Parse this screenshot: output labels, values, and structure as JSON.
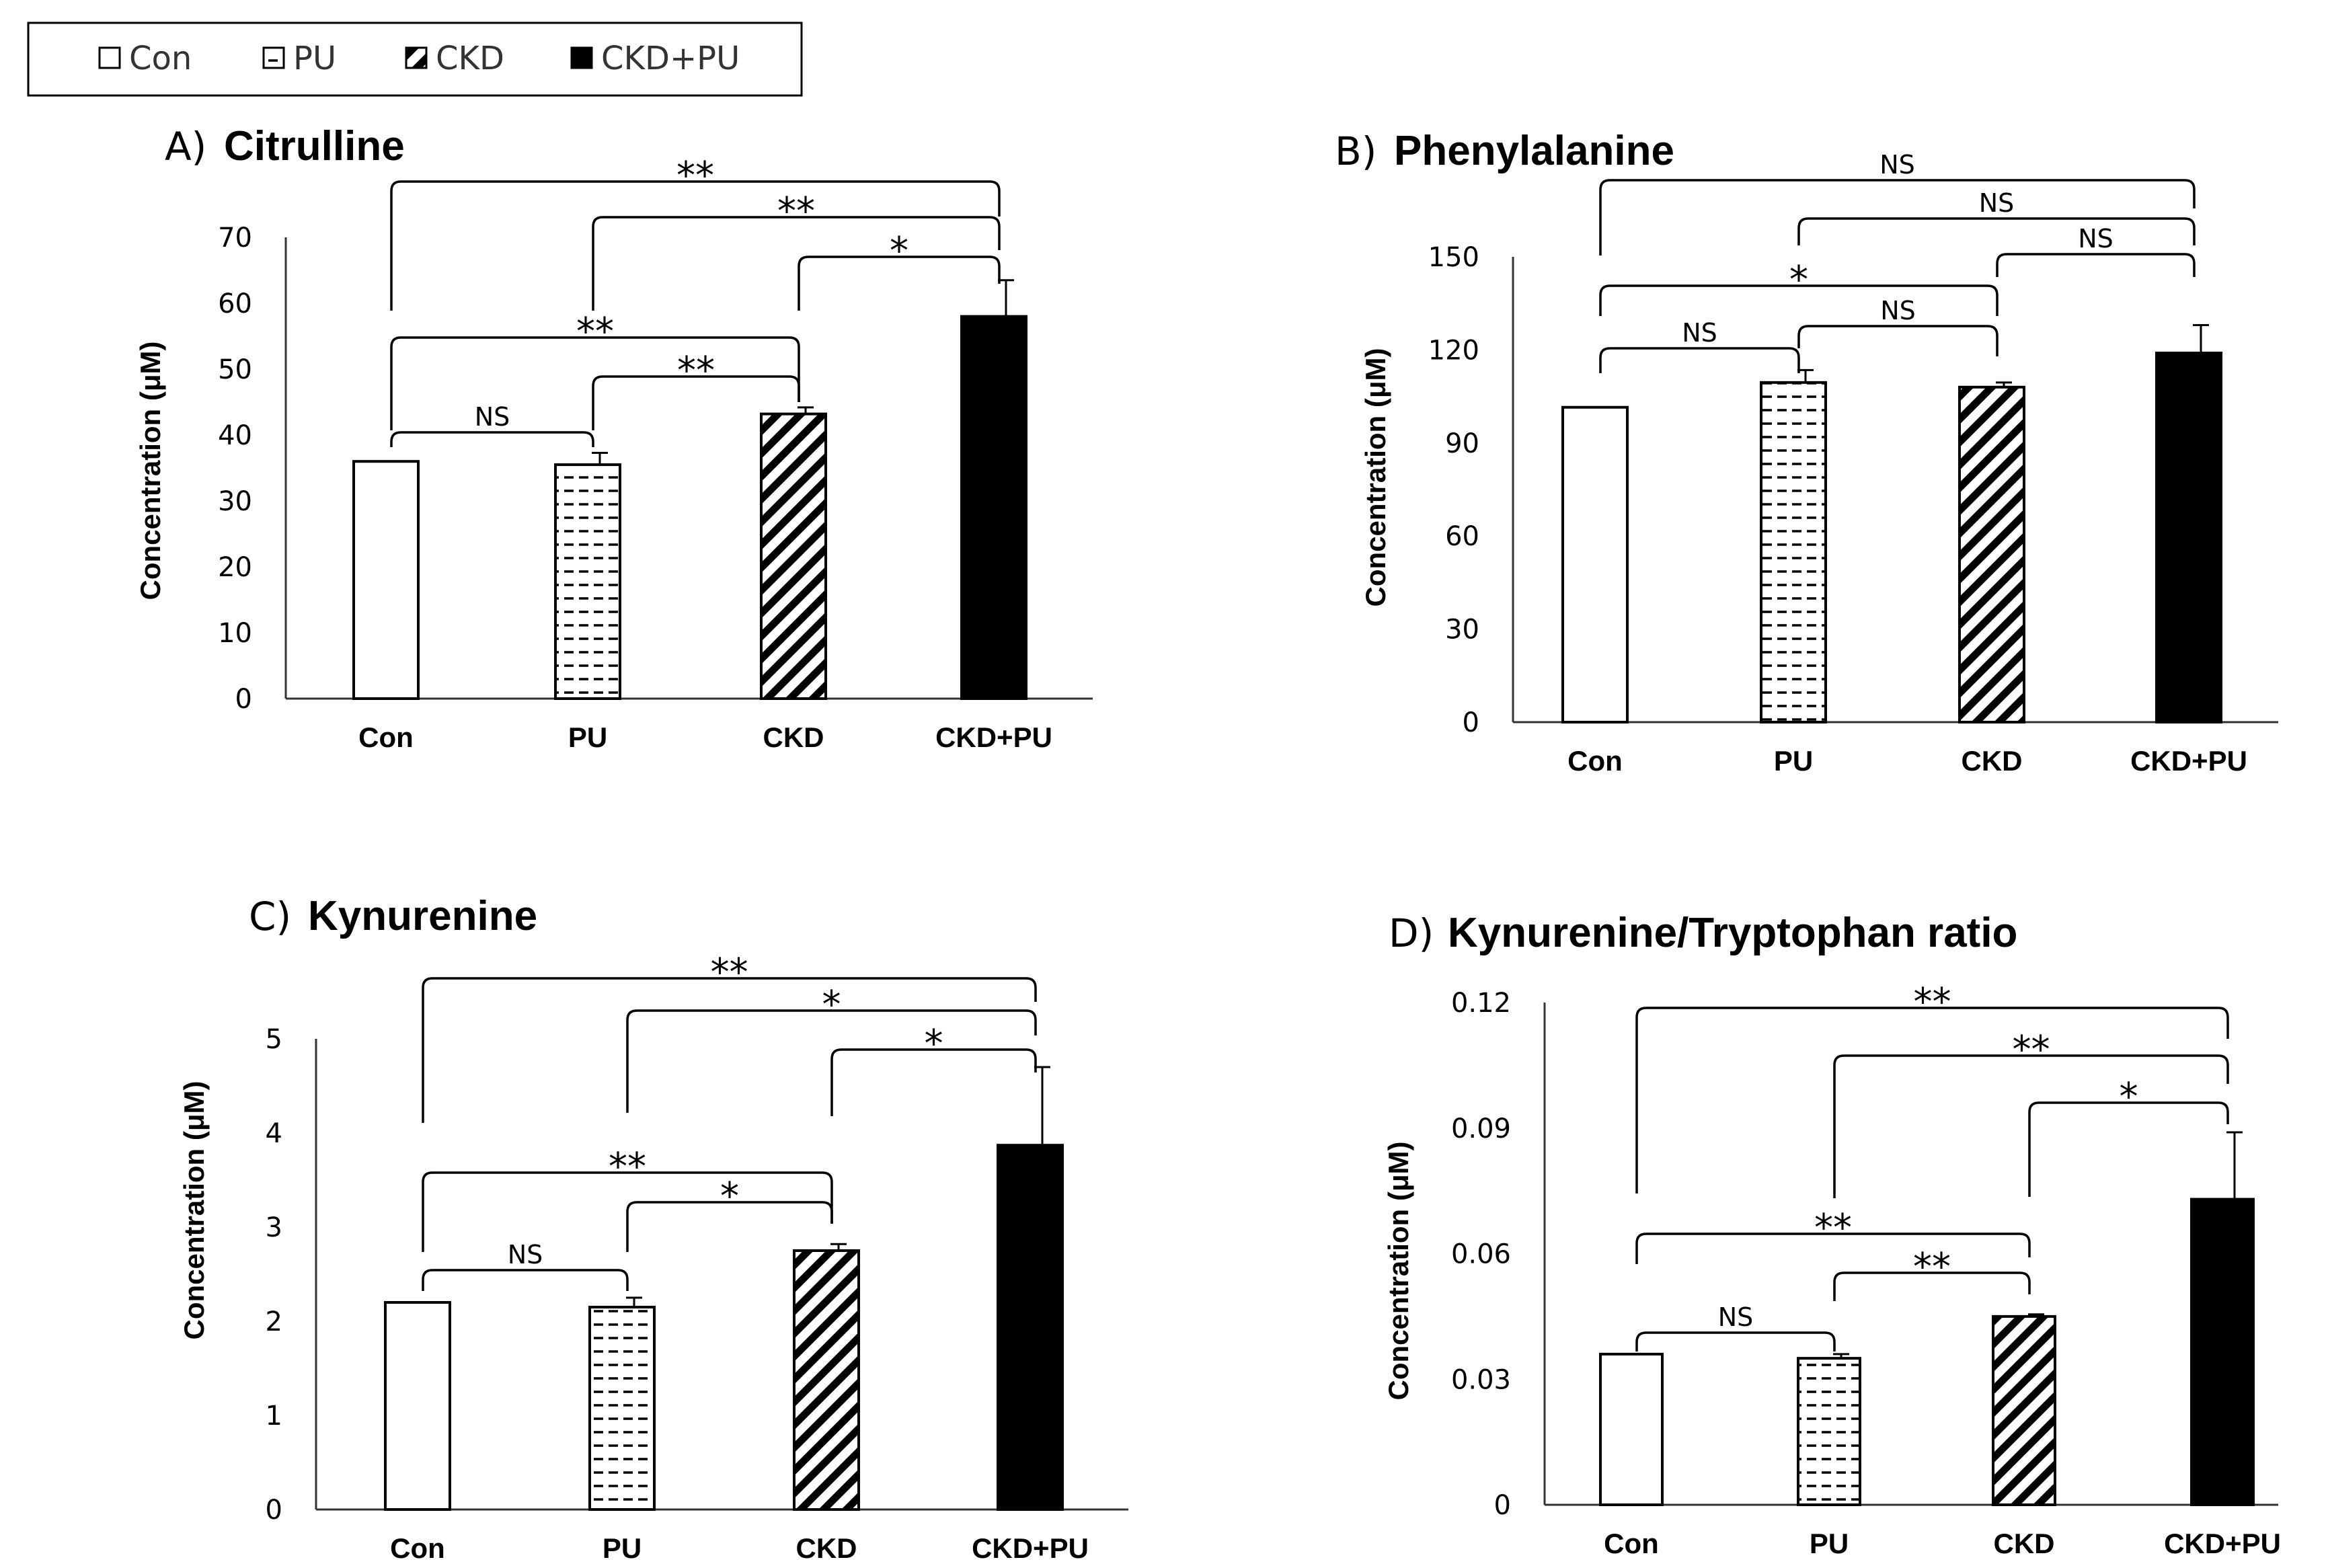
{
  "legend": [
    {
      "label": "Con",
      "pattern": "open"
    },
    {
      "label": "PU",
      "pattern": "dashed"
    },
    {
      "label": "CKD",
      "pattern": "hatched"
    },
    {
      "label": "CKD+PU",
      "pattern": "solid"
    }
  ],
  "colors": {
    "bar_outline": "#000000",
    "solid_fill": "#000000",
    "open_fill": "#ffffff"
  },
  "chart_data": [
    {
      "type": "bar",
      "letter": "A)",
      "title": "Citrulline",
      "ylabel": "Concentration (μM)",
      "categories": [
        "Con",
        "PU",
        "CKD",
        "CKD+PU"
      ],
      "values": [
        36,
        35.5,
        43.2,
        58
      ],
      "errors": [
        0,
        1.8,
        1.0,
        5.5
      ],
      "ylim": [
        0,
        70
      ],
      "yticks": [
        "0",
        "10",
        "20",
        "30",
        "40",
        "50",
        "60",
        "70"
      ],
      "tick_values": [
        0,
        10,
        20,
        30,
        40,
        50,
        60,
        70
      ],
      "comparisons": [
        {
          "from": 0,
          "to": 1,
          "label": "NS"
        },
        {
          "from": 1,
          "to": 2,
          "label": "**"
        },
        {
          "from": 0,
          "to": 2,
          "label": "**"
        },
        {
          "from": 2,
          "to": 3,
          "label": "*"
        },
        {
          "from": 1,
          "to": 3,
          "label": "**"
        },
        {
          "from": 0,
          "to": 3,
          "label": "**"
        }
      ]
    },
    {
      "type": "bar",
      "letter": "B)",
      "title": "Phenylalanine",
      "ylabel": "Concentration (μM)",
      "categories": [
        "Con",
        "PU",
        "CKD",
        "CKD+PU"
      ],
      "values": [
        101.5,
        109.5,
        108,
        119
      ],
      "errors": [
        0,
        4,
        1.5,
        9
      ],
      "ylim": [
        0,
        150
      ],
      "yticks": [
        "0",
        "30",
        "60",
        "90",
        "120",
        "150"
      ],
      "tick_values": [
        0,
        30,
        60,
        90,
        120,
        150
      ],
      "comparisons": [
        {
          "from": 0,
          "to": 1,
          "label": "NS"
        },
        {
          "from": 1,
          "to": 2,
          "label": "NS"
        },
        {
          "from": 0,
          "to": 2,
          "label": "*"
        },
        {
          "from": 2,
          "to": 3,
          "label": "NS"
        },
        {
          "from": 1,
          "to": 3,
          "label": "NS"
        },
        {
          "from": 0,
          "to": 3,
          "label": "NS"
        }
      ]
    },
    {
      "type": "bar",
      "letter": "C)",
      "title": "Kynurenine",
      "ylabel": "Concentration (μM)",
      "categories": [
        "Con",
        "PU",
        "CKD",
        "CKD+PU"
      ],
      "values": [
        2.2,
        2.15,
        2.75,
        3.87
      ],
      "errors": [
        0,
        0.1,
        0.07,
        0.83
      ],
      "ylim": [
        0,
        5
      ],
      "yticks": [
        "0",
        "1",
        "2",
        "3",
        "4",
        "5"
      ],
      "tick_values": [
        0,
        1,
        2,
        3,
        4,
        5
      ],
      "comparisons": [
        {
          "from": 0,
          "to": 1,
          "label": "NS"
        },
        {
          "from": 1,
          "to": 2,
          "label": "*"
        },
        {
          "from": 0,
          "to": 2,
          "label": "**"
        },
        {
          "from": 2,
          "to": 3,
          "label": "*"
        },
        {
          "from": 1,
          "to": 3,
          "label": "*"
        },
        {
          "from": 0,
          "to": 3,
          "label": "**"
        }
      ]
    },
    {
      "type": "bar",
      "letter": "D)",
      "title": "Kynurenine/Tryptophan ratio",
      "ylabel": "Concentration (μM)",
      "categories": [
        "Con",
        "PU",
        "CKD",
        "CKD+PU"
      ],
      "values": [
        0.036,
        0.035,
        0.045,
        0.073
      ],
      "errors": [
        0,
        0.001,
        0.0005,
        0.016
      ],
      "ylim": [
        0,
        0.12
      ],
      "yticks": [
        "0",
        "0.03",
        "0.06",
        "0.09",
        "0.12"
      ],
      "tick_values": [
        0,
        0.03,
        0.06,
        0.09,
        0.12
      ],
      "comparisons": [
        {
          "from": 0,
          "to": 1,
          "label": "NS"
        },
        {
          "from": 1,
          "to": 2,
          "label": "**"
        },
        {
          "from": 0,
          "to": 2,
          "label": "**"
        },
        {
          "from": 2,
          "to": 3,
          "label": "*"
        },
        {
          "from": 1,
          "to": 3,
          "label": "**"
        },
        {
          "from": 0,
          "to": 3,
          "label": "**"
        }
      ]
    }
  ]
}
